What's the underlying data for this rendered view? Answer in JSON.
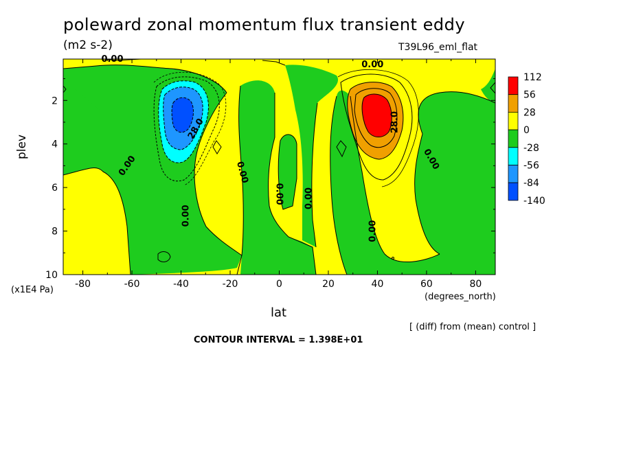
{
  "header": {
    "title": "poleward zonal momentum flux transient eddy",
    "units": "(m2 s-2)",
    "run_label": "T39L96_eml_flat"
  },
  "footer": {
    "diff_note": "[ (diff) from (mean) control ]",
    "contour_interval": "CONTOUR INTERVAL = 1.398E+01"
  },
  "colors": {
    "yellow": "#ffff00",
    "green": "#1ecc1e",
    "cyan": "#00ffff",
    "lightblue": "#1e96ff",
    "blue": "#0050ff",
    "orange": "#f0a000",
    "red": "#ff0000"
  },
  "chart_data": {
    "type": "heatmap",
    "title": "poleward zonal momentum flux transient eddy",
    "xlabel": "lat",
    "ylabel": "plev",
    "x_units": "(degrees_north)",
    "y_units": "(x1E4 Pa)",
    "xlim": [
      -88,
      88
    ],
    "ylim": [
      0.1,
      10
    ],
    "y_inverted": true,
    "x_ticks": [
      -80,
      -60,
      -40,
      -20,
      0,
      20,
      40,
      60,
      80
    ],
    "x_tick_labels": [
      "-80",
      "-60",
      "-40",
      "-20",
      "0",
      "20",
      "40",
      "60",
      "80"
    ],
    "y_ticks": [
      2,
      4,
      6,
      8,
      10
    ],
    "y_tick_labels": [
      "2",
      "4",
      "6",
      "8",
      "10"
    ],
    "legend": {
      "placement": "right",
      "levels": [
        {
          "label": "112",
          "color": "#ff0000"
        },
        {
          "label": "56",
          "color": "#f0a000"
        },
        {
          "label": "28",
          "color": "#ffff00"
        },
        {
          "label": "0",
          "color": "#1ecc1e"
        },
        {
          "label": "-28",
          "color": "#00ffff"
        },
        {
          "label": "-56",
          "color": "#1e96ff"
        },
        {
          "label": "-84",
          "color": "#0050ff"
        },
        {
          "label": "-140",
          "color": ""
        }
      ]
    },
    "features": [
      {
        "kind": "minimum",
        "lat": -40,
        "plev": 2.6,
        "approx_value": -120
      },
      {
        "kind": "maximum",
        "lat": 40,
        "plev": 2.6,
        "approx_value": 120
      }
    ],
    "contour_labels": [
      {
        "text": "0.00",
        "lat": -68,
        "plev": 0.1,
        "angle": 0
      },
      {
        "text": "0.00",
        "lat": 38,
        "plev": 0.35,
        "angle": 0
      },
      {
        "text": "28.0",
        "lat": -34,
        "plev": 3.3,
        "angle": -60
      },
      {
        "text": "28.0",
        "lat": 47,
        "plev": 3.0,
        "angle": -90
      },
      {
        "text": "0.00",
        "lat": -62,
        "plev": 5.0,
        "angle": -55
      },
      {
        "text": "0.00",
        "lat": -15,
        "plev": 5.3,
        "angle": 75
      },
      {
        "text": "0.00",
        "lat": 0,
        "plev": 6.3,
        "angle": 90
      },
      {
        "text": "0.00",
        "lat": 12,
        "plev": 6.5,
        "angle": -90
      },
      {
        "text": "0.00",
        "lat": -38,
        "plev": 7.3,
        "angle": -90
      },
      {
        "text": "0.00",
        "lat": 38,
        "plev": 8.0,
        "angle": -90
      },
      {
        "text": "0.00",
        "lat": 62,
        "plev": 4.7,
        "angle": 60
      }
    ]
  }
}
